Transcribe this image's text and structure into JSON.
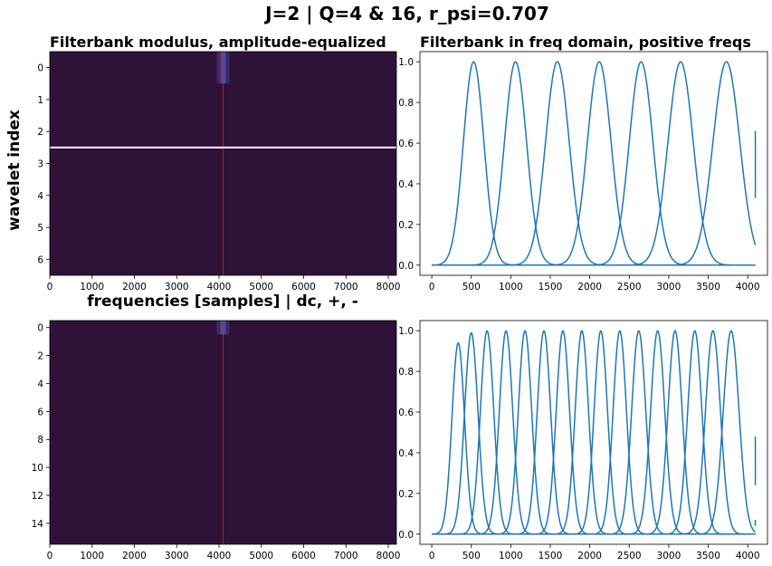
{
  "figure": {
    "suptitle": "J=2 | Q=4 & 16, r_psi=0.707",
    "left_title": "Filterbank modulus, amplitude-equalized",
    "right_title": "Filterbank in freq domain, positive freqs",
    "ylabel": "wavelet index",
    "xlabel": "frequencies [samples] | dc, +, -",
    "colors": {
      "line": "#1f77b4",
      "heat_bg": "#2f1238",
      "separator": "#ffffff",
      "center_line": "#b5302e"
    }
  },
  "chart_data": [
    {
      "type": "heatmap",
      "panel": "top-left",
      "title": "Filterbank modulus, amplitude-equalized",
      "xlabel": "frequencies [samples] | dc, +, -",
      "ylabel": "wavelet index",
      "xlim": [
        0,
        8192
      ],
      "ylim": [
        6.5,
        -0.5
      ],
      "xticks": [
        0,
        1000,
        2000,
        3000,
        4000,
        5000,
        6000,
        7000,
        8000
      ],
      "yticks": [
        0,
        1,
        2,
        3,
        4,
        5,
        6
      ],
      "separator_y": 2.5,
      "center_x": 4096
    },
    {
      "type": "line",
      "panel": "top-right",
      "title": "Filterbank in freq domain, positive freqs",
      "n_filters": 7,
      "peak_x": [
        530,
        1060,
        1590,
        2120,
        2650,
        3150,
        3730
      ],
      "widths": [
        130,
        140,
        150,
        150,
        150,
        160,
        170
      ],
      "peak_y": [
        1,
        1,
        1,
        1,
        1,
        1,
        1
      ],
      "last_x": 4096,
      "last_filter_end_values": [
        0.66,
        0.33
      ],
      "xlim": [
        -150,
        4250
      ],
      "ylim": [
        -0.05,
        1.05
      ],
      "xticks": [
        0,
        500,
        1000,
        1500,
        2000,
        2500,
        3000,
        3500,
        4000
      ],
      "yticks": [
        0.0,
        0.2,
        0.4,
        0.6,
        0.8,
        1.0
      ]
    },
    {
      "type": "heatmap",
      "panel": "bottom-left",
      "xlim": [
        0,
        8192
      ],
      "ylim": [
        15.5,
        -0.5
      ],
      "xticks": [
        0,
        1000,
        2000,
        3000,
        4000,
        5000,
        6000,
        7000,
        8000
      ],
      "yticks": [
        0,
        2,
        4,
        6,
        8,
        10,
        12,
        14
      ],
      "center_x": 4096
    },
    {
      "type": "line",
      "panel": "bottom-right",
      "n_filters": 16,
      "peak_x": [
        335,
        500,
        700,
        940,
        1180,
        1420,
        1660,
        1900,
        2140,
        2380,
        2620,
        2860,
        3080,
        3330,
        3560,
        3790
      ],
      "widths": [
        80,
        85,
        85,
        85,
        85,
        85,
        85,
        85,
        85,
        85,
        90,
        90,
        90,
        90,
        95,
        100
      ],
      "peak_y": [
        0.94,
        0.99,
        1,
        1,
        1,
        1,
        1,
        1,
        1,
        1,
        1,
        1,
        1,
        1,
        1,
        1
      ],
      "last_x": 4096,
      "last_filter_end_values": [
        0.48,
        0.24
      ],
      "extra_end_values": [
        0.07,
        0.04
      ],
      "xlim": [
        -150,
        4250
      ],
      "ylim": [
        -0.05,
        1.05
      ],
      "xticks": [
        0,
        500,
        1000,
        1500,
        2000,
        2500,
        3000,
        3500,
        4000
      ],
      "yticks": [
        0.0,
        0.2,
        0.4,
        0.6,
        0.8,
        1.0
      ]
    }
  ]
}
